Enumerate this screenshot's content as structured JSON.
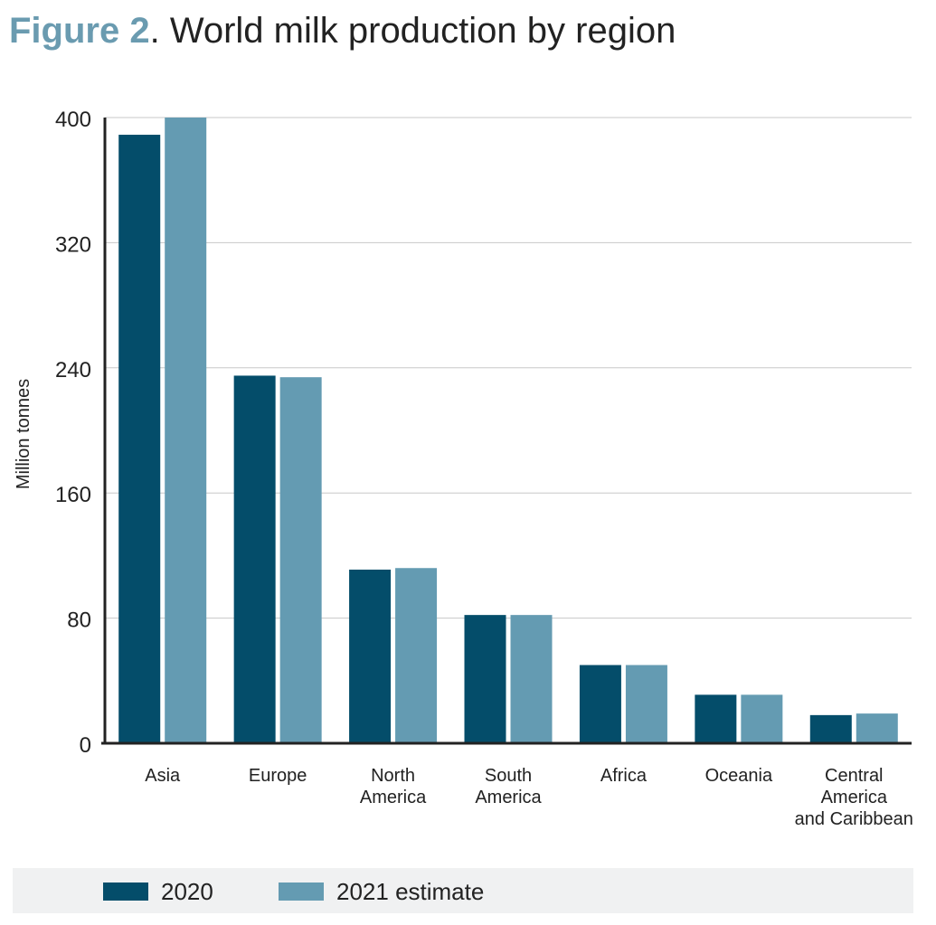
{
  "header": {
    "figure_label": "Figure 2",
    "title_text": ". World milk production by region"
  },
  "colors": {
    "series_2020": "#044d6a",
    "series_2021": "#649bb2",
    "title_accent": "#6a9bb0",
    "gridline": "#c8c8c8",
    "axis": "#222222"
  },
  "chart_data": {
    "type": "bar",
    "title": "World milk production by region",
    "ylabel": "Million tonnes",
    "xlabel": "",
    "ylim": [
      0,
      400
    ],
    "yticks": [
      0,
      80,
      160,
      240,
      320,
      400
    ],
    "grid": true,
    "legend_position": "bottom",
    "categories": [
      [
        "Asia"
      ],
      [
        "Europe"
      ],
      [
        "North",
        "America"
      ],
      [
        "South",
        "America"
      ],
      [
        "Africa"
      ],
      [
        "Oceania"
      ],
      [
        "Central",
        "America",
        "and Caribbean"
      ]
    ],
    "series": [
      {
        "name": "2020",
        "color": "#044d6a",
        "values": [
          389,
          235,
          111,
          82,
          50,
          31,
          18
        ]
      },
      {
        "name": "2021 estimate",
        "color": "#649bb2",
        "values": [
          400,
          234,
          112,
          82,
          50,
          31,
          19
        ]
      }
    ]
  }
}
